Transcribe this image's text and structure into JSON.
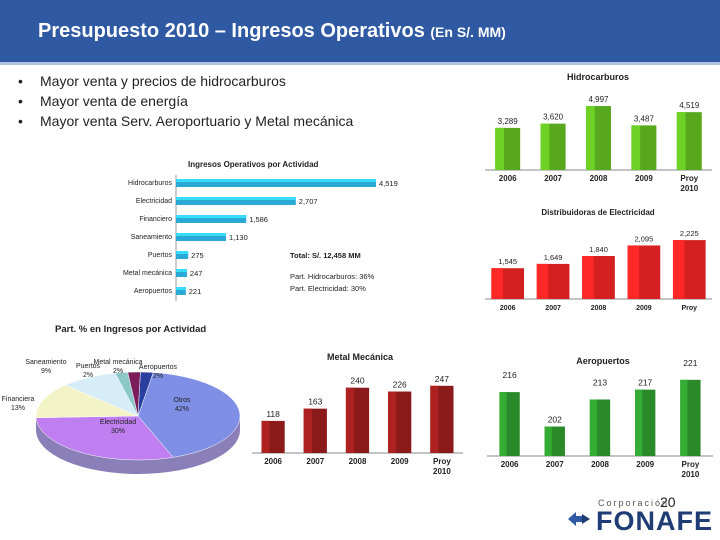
{
  "slide": {
    "title": "Presupuesto 2010 – Ingresos Operativos",
    "title_unit": "(En S/. MM)",
    "bullets": [
      "Mayor venta y precios de hidrocarburos",
      "Mayor venta de energía",
      "Mayor venta Serv. Aeroportuario y Metal mecánica"
    ],
    "page_number": "20",
    "logo_top": "Corporación",
    "logo_name": "FONAFE"
  },
  "chart_data": [
    {
      "id": "actividad",
      "type": "bar",
      "orientation": "horizontal",
      "title": "Ingresos Operativos por Actividad",
      "categories": [
        "Hidrocarburos",
        "Electricidad",
        "Financiero",
        "Saneamiento",
        "Puertos",
        "Metal mecánica",
        "Aeropuertos"
      ],
      "values": [
        4519,
        2707,
        1586,
        1130,
        275,
        247,
        221
      ],
      "labels": [
        "4,519",
        "2,707",
        "1,586",
        "1,130",
        "275",
        "247",
        "221"
      ],
      "annotations": [
        "Total: S/. 12,458 MM",
        "Part. Hidrocarburos: 36%",
        "Part. Electricidad: 30%"
      ],
      "color": "#2aa9d6"
    },
    {
      "id": "hidrocarburos",
      "type": "bar",
      "title": "Hidrocarburos",
      "categories": [
        "2006",
        "2007",
        "2008",
        "2009",
        "Proy 2010"
      ],
      "values": [
        3289,
        3620,
        4997,
        3487,
        4519
      ],
      "labels": [
        "3,289",
        "3,620",
        "4,997",
        "3,487",
        "4,519"
      ],
      "color": "#58a81e"
    },
    {
      "id": "electricidad",
      "type": "bar",
      "title": "Distribuidoras de Electricidad",
      "categories": [
        "2006",
        "2007",
        "2008",
        "2009",
        "Proy 2010"
      ],
      "values": [
        1545,
        1649,
        1840,
        2095,
        2225
      ],
      "labels": [
        "1,545",
        "1,649",
        "1,840",
        "2,095",
        "2,225"
      ],
      "color": "#d42020"
    },
    {
      "id": "participacion",
      "type": "pie",
      "title": "Part. % en Ingresos por Actividad",
      "slices": [
        {
          "label": "Otros",
          "value": 42,
          "pct": "42%",
          "color": "#7f8fe6"
        },
        {
          "label": "Electricidad",
          "value": 30,
          "pct": "30%",
          "color": "#bf7ff0"
        },
        {
          "label": "Financiera",
          "value": 13,
          "pct": "13%",
          "color": "#f3f3c8"
        },
        {
          "label": "Saneamiento",
          "value": 9,
          "pct": "9%",
          "color": "#d6ecf7"
        },
        {
          "label": "Puertos",
          "value": 2,
          "pct": "2%",
          "color": "#8cc8c8"
        },
        {
          "label": "Metal mecánica",
          "value": 2,
          "pct": "2%",
          "color": "#7a1d5a"
        },
        {
          "label": "Aeropuertos",
          "value": 2,
          "pct": "2%",
          "color": "#2a3fa0"
        }
      ]
    },
    {
      "id": "metal",
      "type": "bar",
      "title": "Metal Mecánica",
      "categories": [
        "2006",
        "2007",
        "2008",
        "2009",
        "Proy 2010"
      ],
      "values": [
        118,
        163,
        240,
        226,
        247
      ],
      "labels": [
        "118",
        "163",
        "240",
        "226",
        "247"
      ],
      "color": "#8b1a1a"
    },
    {
      "id": "aeropuertos",
      "type": "bar",
      "title": "Aeropuertos",
      "categories": [
        "2006",
        "2007",
        "2008",
        "2009",
        "Proy 2010"
      ],
      "values": [
        216,
        202,
        213,
        217,
        221
      ],
      "labels": [
        "216",
        "202",
        "213",
        "217",
        "221"
      ],
      "color": "#2a8a2a"
    }
  ]
}
